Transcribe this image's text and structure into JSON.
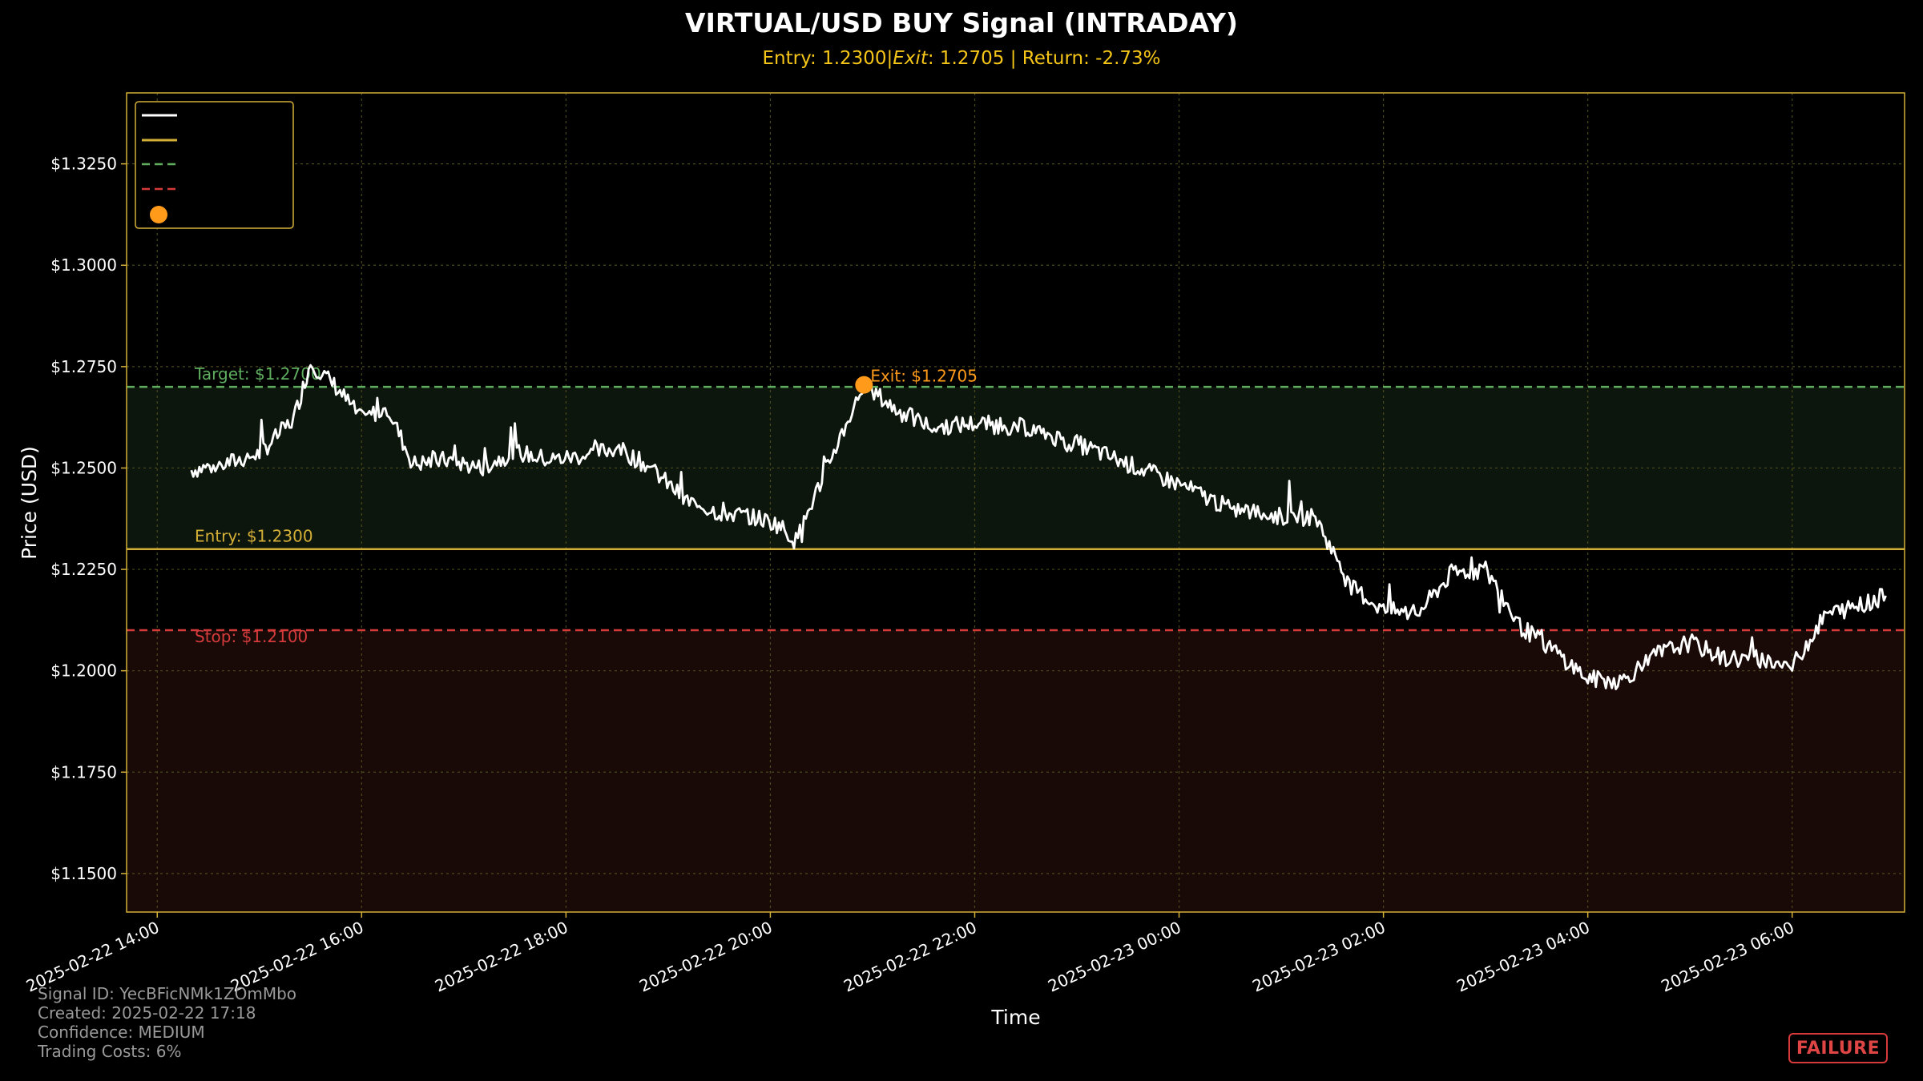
{
  "chart_data": {
    "type": "line",
    "title": "VIRTUAL/USD BUY Signal (INTRADAY)",
    "subtitle": "Entry: 1.2300|$Exit: $1.2705 | Return: -2.73%",
    "subtitle_parts": {
      "lead": "Entry: 1.2300|",
      "italic": "Exit",
      "tail": ": 1.2705 | Return: -2.73%"
    },
    "xlabel": "Time",
    "ylabel": "Price (USD)",
    "ylim": [
      1.1405,
      1.3425
    ],
    "xlim": [
      "2025-02-22 13:42",
      "2025-02-23 07:06"
    ],
    "yticks": [
      "$1.1500",
      "$1.1750",
      "$1.2000",
      "$1.2250",
      "$1.2500",
      "$1.2750",
      "$1.3000",
      "$1.3250"
    ],
    "ytick_values": [
      1.15,
      1.175,
      1.2,
      1.225,
      1.25,
      1.275,
      1.3,
      1.325
    ],
    "xticks": [
      "2025-02-22 14:00",
      "2025-02-22 16:00",
      "2025-02-22 18:00",
      "2025-02-22 20:00",
      "2025-02-22 22:00",
      "2025-02-23 00:00",
      "2025-02-23 02:00",
      "2025-02-23 04:00",
      "2025-02-23 06:00"
    ],
    "grid": true,
    "legend_placement": "top-left",
    "levels": {
      "entry": {
        "value": 1.23,
        "label": "Entry: $1.2300",
        "color": "#d4af37"
      },
      "target": {
        "value": 1.27,
        "label": "Target: $1.2700",
        "color": "#5fae5f"
      },
      "stop": {
        "value": 1.21,
        "label": "Stop: $1.2100",
        "color": "#d63b3b"
      }
    },
    "exit_point": {
      "time": "2025-02-22 20:55",
      "value": 1.2705,
      "label": "Exit: $1.2705",
      "color": "#ff9a1a"
    },
    "series": [
      {
        "color": "#ffffff",
        "x": [
          "2025-02-22 14:20",
          "2025-02-22 14:40",
          "2025-02-22 15:00",
          "2025-02-22 15:20",
          "2025-02-22 15:30",
          "2025-02-22 15:45",
          "2025-02-22 16:00",
          "2025-02-22 16:15",
          "2025-02-22 16:30",
          "2025-02-22 16:50",
          "2025-02-22 17:10",
          "2025-02-22 17:30",
          "2025-02-22 17:50",
          "2025-02-22 18:10",
          "2025-02-22 18:30",
          "2025-02-22 18:50",
          "2025-02-22 19:10",
          "2025-02-22 19:30",
          "2025-02-22 19:50",
          "2025-02-22 20:05",
          "2025-02-22 20:15",
          "2025-02-22 20:35",
          "2025-02-22 20:55",
          "2025-02-22 21:15",
          "2025-02-22 21:35",
          "2025-02-22 22:00",
          "2025-02-22 22:30",
          "2025-02-22 23:00",
          "2025-02-22 23:30",
          "2025-02-23 00:00",
          "2025-02-23 00:30",
          "2025-02-23 01:00",
          "2025-02-23 01:20",
          "2025-02-23 01:40",
          "2025-02-23 02:00",
          "2025-02-23 02:20",
          "2025-02-23 02:40",
          "2025-02-23 03:00",
          "2025-02-23 03:20",
          "2025-02-23 03:40",
          "2025-02-23 04:00",
          "2025-02-23 04:20",
          "2025-02-23 04:40",
          "2025-02-23 05:00",
          "2025-02-23 05:20",
          "2025-02-23 05:40",
          "2025-02-23 06:00",
          "2025-02-23 06:20",
          "2025-02-23 06:40",
          "2025-02-23 06:55"
        ],
        "values": [
          1.2495,
          1.251,
          1.2535,
          1.262,
          1.276,
          1.27,
          1.262,
          1.265,
          1.251,
          1.252,
          1.25,
          1.254,
          1.252,
          1.253,
          1.255,
          1.25,
          1.242,
          1.239,
          1.238,
          1.236,
          1.232,
          1.252,
          1.2705,
          1.264,
          1.26,
          1.261,
          1.26,
          1.256,
          1.251,
          1.246,
          1.24,
          1.238,
          1.238,
          1.221,
          1.215,
          1.214,
          1.224,
          1.225,
          1.211,
          1.205,
          1.198,
          1.1975,
          1.204,
          1.207,
          1.203,
          1.203,
          1.201,
          1.214,
          1.216,
          1.2185
        ]
      }
    ]
  },
  "footer": {
    "signal_id": "Signal ID: YecBFicNMk1ZOmMbo",
    "created": "Created: 2025-02-22 17:18",
    "confidence": "Confidence: MEDIUM",
    "trading_costs": "Trading Costs: 6%"
  },
  "status_badge": "FAILURE",
  "colors": {
    "background": "#000000",
    "plot_border": "#d4af37",
    "grid": "#4a4a1a",
    "target_zone": "#0c160c",
    "stop_zone": "#190a08",
    "price_line": "#ffffff"
  }
}
